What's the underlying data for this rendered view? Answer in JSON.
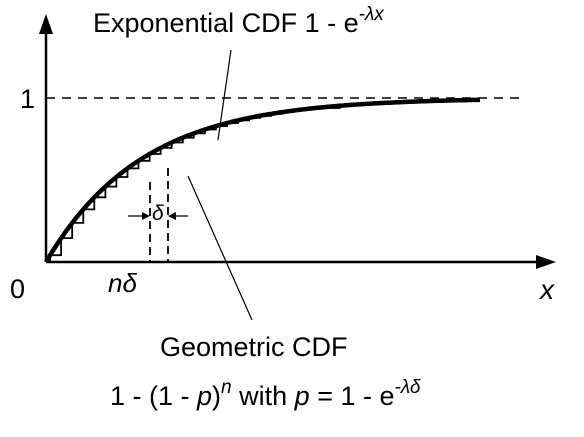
{
  "title": {
    "prefix": "Exponential CDF 1 - e",
    "superscript": "-λx"
  },
  "axis": {
    "y_tick": "1",
    "origin": "0",
    "x_label": "x",
    "n_delta": "nδ",
    "delta": "δ"
  },
  "geometric": {
    "title": "Geometric CDF",
    "formula_a": "1 - (1 - ",
    "formula_p": "p",
    "formula_b": ")",
    "formula_n": "n",
    "formula_c": " with ",
    "formula_p2": "p",
    "formula_d": " = 1 - e",
    "formula_sup": "-λδ"
  },
  "chart_data": {
    "type": "line",
    "series": [
      {
        "kind": "exponential",
        "rate": 0.85
      },
      {
        "kind": "geometric-staircase",
        "step": 0.1
      }
    ],
    "x_range": [
      0,
      5.3
    ],
    "y_range": [
      0,
      1
    ],
    "reference_line": 1
  },
  "colors": {
    "ink": "#000000",
    "background": "#ffffff"
  }
}
